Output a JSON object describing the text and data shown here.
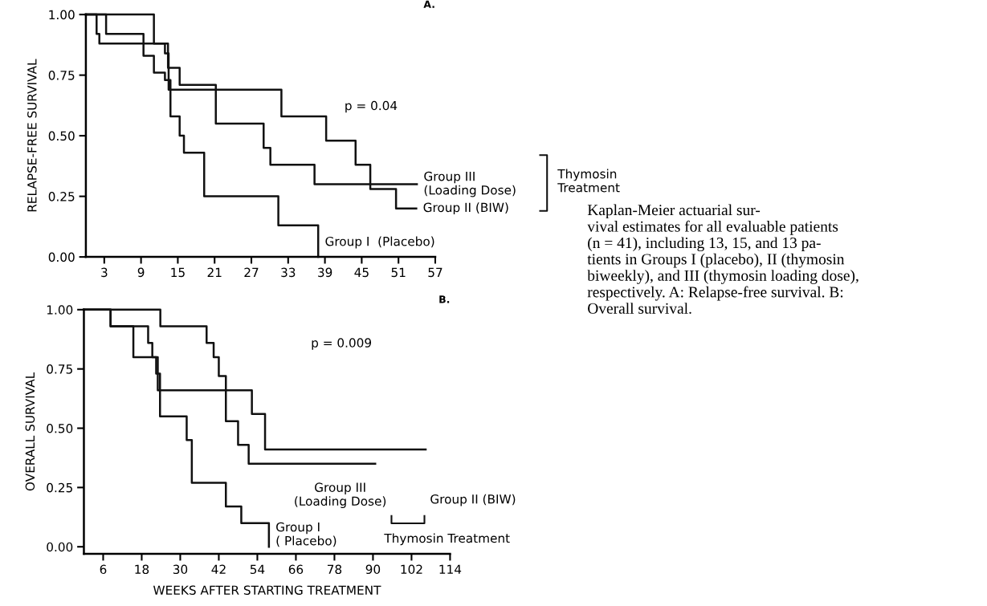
{
  "chart_data": [
    {
      "type": "step",
      "title": "A.",
      "ylabel": "RELAPSE-FREE SURVIVAL",
      "xlim": [
        0,
        57
      ],
      "xticks": [
        3,
        9,
        15,
        21,
        27,
        33,
        39,
        45,
        51,
        57
      ],
      "ylim": [
        0,
        1
      ],
      "yticks": [
        {
          "value": 0,
          "label": "0.00"
        },
        {
          "value": 0.25,
          "label": "0.25"
        },
        {
          "value": 0.5,
          "label": "0.50"
        },
        {
          "value": 0.75,
          "label": "0.75"
        },
        {
          "value": 1,
          "label": "1.00"
        }
      ],
      "grid": false,
      "legend": false,
      "series": [
        {
          "color": "#111111",
          "x": [
            0,
            3.3,
            9.4,
            11.1,
            12.9,
            13.8,
            15.3,
            16.0,
            19.3,
            31.4,
            37.9
          ],
          "values": [
            1,
            0.92,
            0.83,
            0.76,
            0.73,
            0.58,
            0.5,
            0.43,
            0.25,
            0.13,
            0
          ]
        },
        {
          "color": "#111111",
          "x": [
            0,
            1.75,
            2.2,
            12.9,
            13.5,
            31.9,
            39.2,
            44,
            46.4,
            50.6,
            53.9
          ],
          "values": [
            1,
            0.92,
            0.88,
            0.84,
            0.69,
            0.58,
            0.48,
            0.38,
            0.28,
            0.2,
            0.2
          ]
        },
        {
          "color": "#111111",
          "x": [
            0,
            11.1,
            13.4,
            15.3,
            21.2,
            29,
            30.1,
            37.3,
            54
          ],
          "values": [
            1,
            0.88,
            0.78,
            0.71,
            0.55,
            0.45,
            0.38,
            0.3,
            0.3
          ]
        }
      ],
      "annotations": [
        "p = 0.04",
        {
          "text": "Group I  (Placebo)",
          "x": 37.9,
          "y": 0.06
        },
        {
          "text": "Group II (BIW)",
          "x": 53.9,
          "y": 0.2
        },
        {
          "text": "Group III\n(Loading Dose)",
          "x": 54,
          "y": 0.3
        },
        "Thymosin\nTreatment",
        "Kaplan-Meier actuarial sur-\nvival estimates for all evaluable patients\n(n = 41), including 13, 15, and 13 pa-\ntients in Groups I (placebo), II (thymosin\nbiweekly), and III (thymosin loading dose),\nrespectively. A: Relapse-free survival. B:\nOverall survival."
      ]
    },
    {
      "type": "step",
      "title": "B.",
      "ylabel": "OVERALL SURVIVAL",
      "xlabel": "WEEKS AFTER STARTING TREATMENT",
      "xlim": [
        0,
        114
      ],
      "xticks": [
        6,
        18,
        30,
        42,
        54,
        66,
        78,
        90,
        102,
        114
      ],
      "ylim": [
        -0.03,
        1
      ],
      "yticks": [
        {
          "value": 0,
          "label": "0.00"
        },
        {
          "value": 0.25,
          "label": "0.25"
        },
        {
          "value": 0.5,
          "label": "0.50"
        },
        {
          "value": 0.75,
          "label": "0.75"
        },
        {
          "value": 1,
          "label": "1.00"
        }
      ],
      "grid": false,
      "legend": false,
      "series": [
        {
          "color": "#111111",
          "x": [
            0,
            8.3,
            15.4,
            22.5,
            23.7,
            32,
            33.6,
            44.2,
            49,
            57.6
          ],
          "values": [
            1,
            0.93,
            0.8,
            0.73,
            0.55,
            0.45,
            0.27,
            0.17,
            0.1,
            0
          ]
        },
        {
          "color": "#111111",
          "x": [
            0,
            8.3,
            20,
            21.3,
            23,
            52.3,
            56.4,
            106.4
          ],
          "values": [
            1,
            0.93,
            0.86,
            0.8,
            0.66,
            0.56,
            0.41,
            0.41
          ]
        },
        {
          "color": "#111111",
          "x": [
            0,
            23.8,
            38.2,
            40.4,
            42,
            44.2,
            48,
            51.3,
            90.7
          ],
          "values": [
            1,
            0.93,
            0.86,
            0.8,
            0.72,
            0.53,
            0.43,
            0.35,
            0.35
          ]
        }
      ],
      "annotations": [
        "p = 0.009",
        {
          "text": "Group I\n( Placebo)",
          "x": 57.6,
          "y": 0.05
        },
        "Group III\n(Loading Dose)",
        "Group II (BIW)",
        "Thymosin Treatment"
      ]
    }
  ]
}
